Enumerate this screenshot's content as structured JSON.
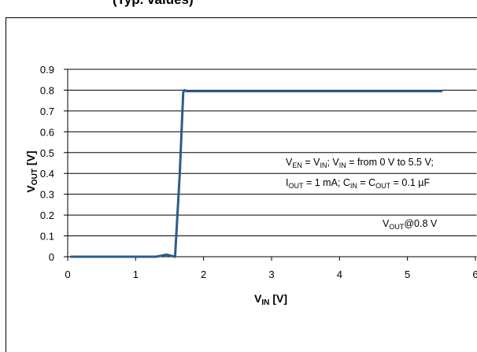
{
  "header": {
    "partial_title": "(Typ. values)"
  },
  "chart_data": {
    "type": "line",
    "x_axis": {
      "label_main": "V",
      "label_sub": "IN",
      "label_unit": " [V]",
      "range": [
        0,
        6
      ],
      "ticks": [
        0,
        1,
        2,
        3,
        4,
        5,
        6
      ],
      "tick_labels": [
        "0",
        "1",
        "2",
        "3",
        "4",
        "5",
        "6"
      ]
    },
    "y_axis": {
      "label_main": "V",
      "label_sub": "OUT",
      "label_unit": " [V]",
      "range": [
        0,
        0.9
      ],
      "ticks": [
        0,
        0.1,
        0.2,
        0.3,
        0.4,
        0.5,
        0.6,
        0.7,
        0.8,
        0.9
      ],
      "tick_labels": [
        "0",
        "0.1",
        "0.2",
        "0.3",
        "0.4",
        "0.5",
        "0.6",
        "0.7",
        "0.8",
        "0.9"
      ]
    },
    "grid": "horizontal",
    "line_color": "#2e5b8a",
    "series": [
      {
        "x": [
          0.05,
          1.3,
          1.38,
          1.45,
          1.52,
          1.58,
          1.65,
          1.7,
          1.72,
          1.75,
          1.8,
          5.5
        ],
        "y": [
          0.0,
          0.0,
          0.005,
          0.01,
          0.005,
          0.0,
          0.4,
          0.79,
          0.8,
          0.795,
          0.795,
          0.795
        ]
      }
    ],
    "annotations": [
      {
        "parts": [
          [
            "V",
            "main"
          ],
          [
            "EN",
            "sub"
          ],
          [
            " = V",
            "main"
          ],
          [
            "IN",
            "sub"
          ],
          [
            "; V",
            "main"
          ],
          [
            "IN",
            "sub"
          ],
          [
            " = from 0 V to 5.5 V;",
            "main"
          ]
        ]
      },
      {
        "parts": [
          [
            "I",
            "main"
          ],
          [
            "OUT",
            "sub"
          ],
          [
            " = 1 mA; C",
            "main"
          ],
          [
            "IN",
            "sub"
          ],
          [
            " = C",
            "main"
          ],
          [
            "OUT",
            "sub"
          ],
          [
            " = 0.1 µF",
            "main"
          ]
        ]
      },
      {
        "parts": [
          [
            "V",
            "main"
          ],
          [
            "OUT",
            "sub"
          ],
          [
            "@0.8 V",
            "main"
          ]
        ]
      }
    ]
  }
}
